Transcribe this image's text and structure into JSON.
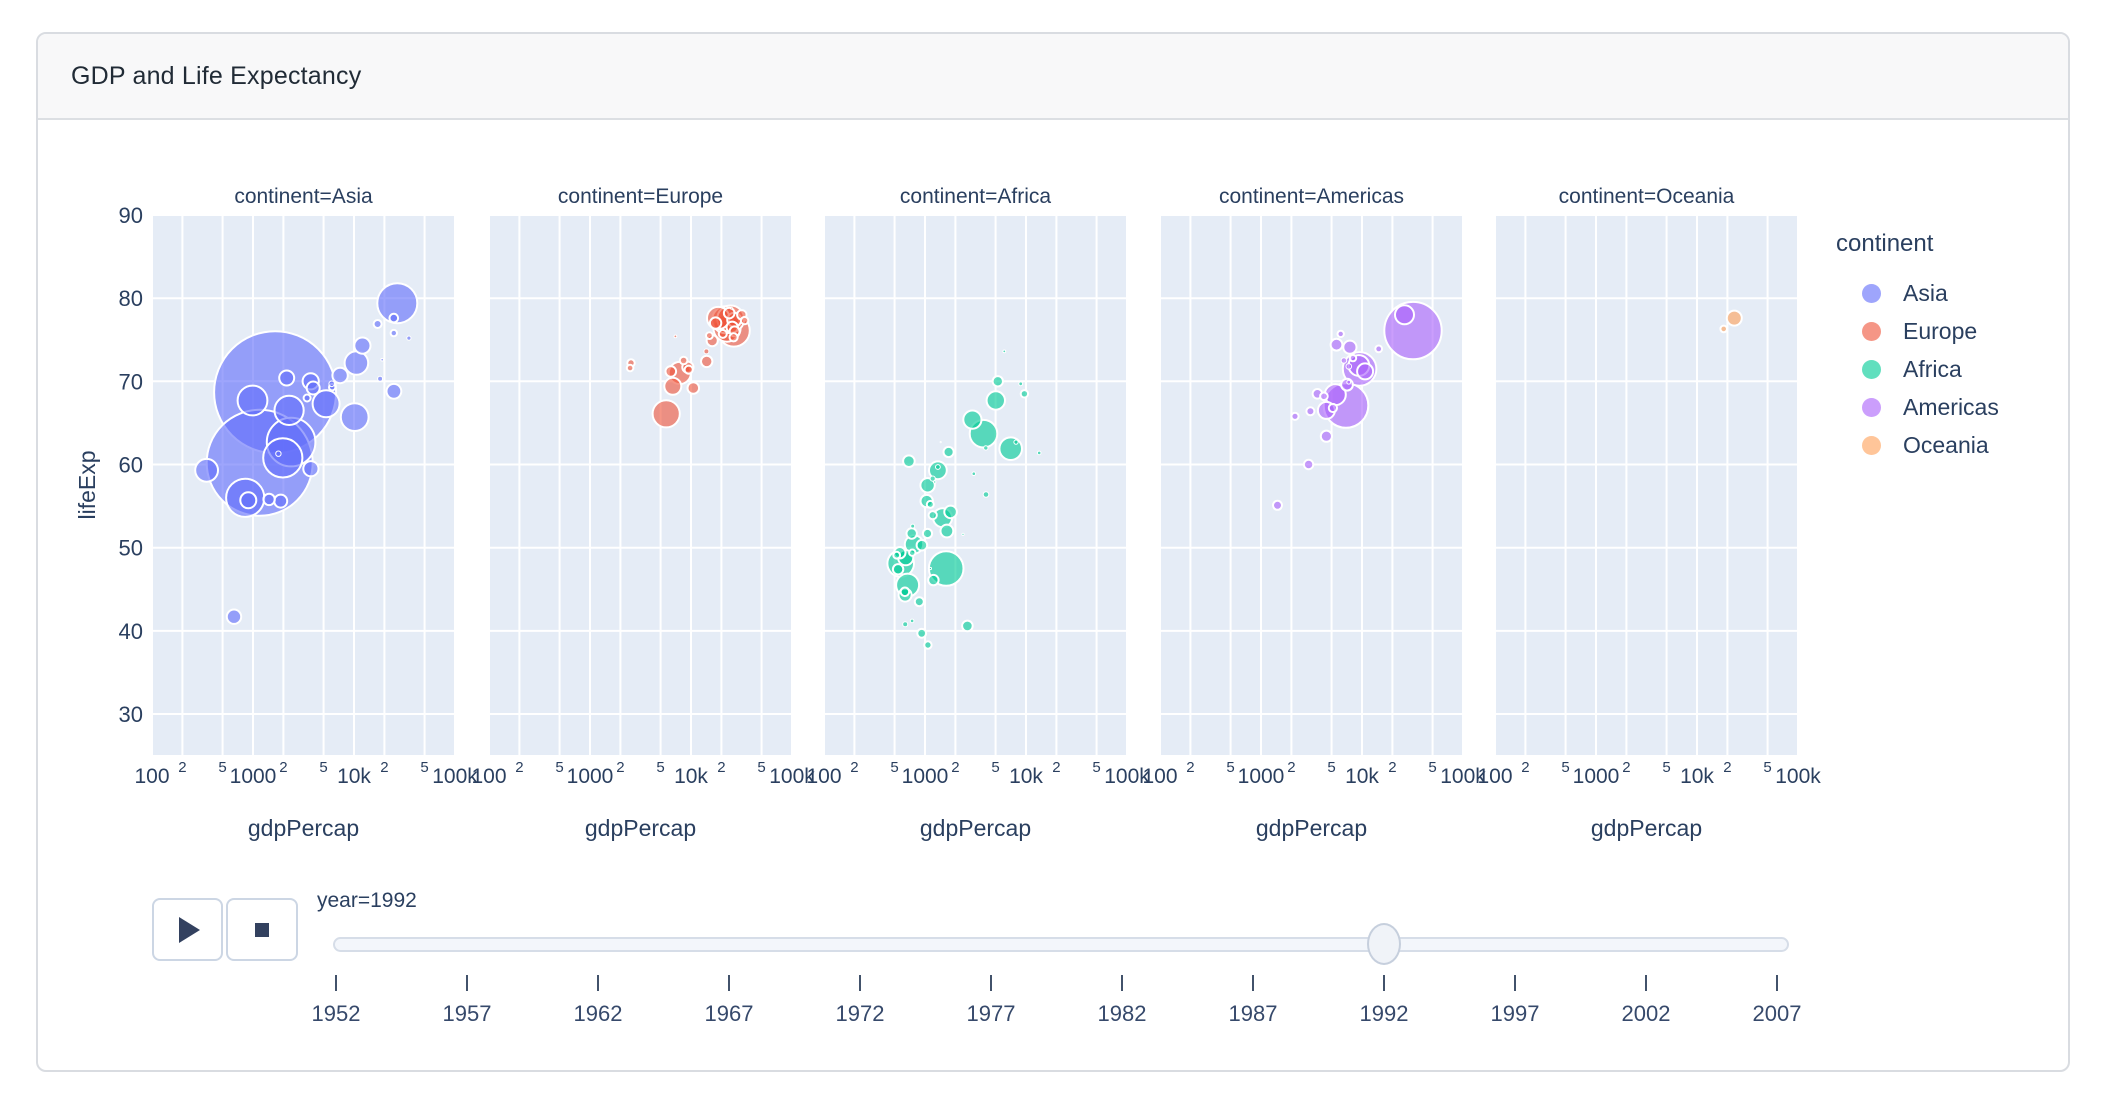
{
  "header": {
    "title": "GDP and Life Expectancy"
  },
  "controls": {
    "year_label": "year=1992",
    "play_icon": "play-triangle",
    "stop_icon": "stop-square"
  },
  "chart_data": {
    "type": "scatter",
    "subtype": "faceted-bubble",
    "title": "GDP and Life Expectancy",
    "xlabel": "gdpPercap",
    "ylabel": "lifeExp",
    "x_scale": "log",
    "x_range": [
      100,
      100000
    ],
    "y_grid_ticks": [
      30,
      40,
      50,
      60,
      70,
      80,
      90
    ],
    "grid": true,
    "legend_position": "right",
    "colors": {
      "plot_bg": "#e5ecf6",
      "grid": "#ffffff",
      "text": "#2a3f5f"
    },
    "x_ticks": [
      {
        "v": 100,
        "label": "100",
        "minor": false
      },
      {
        "v": 200,
        "label": "2",
        "minor": true
      },
      {
        "v": 500,
        "label": "5",
        "minor": true
      },
      {
        "v": 1000,
        "label": "1000",
        "minor": false
      },
      {
        "v": 2000,
        "label": "2",
        "minor": true
      },
      {
        "v": 5000,
        "label": "5",
        "minor": true
      },
      {
        "v": 10000,
        "label": "10k",
        "minor": false
      },
      {
        "v": 20000,
        "label": "2",
        "minor": true
      },
      {
        "v": 50000,
        "label": "5",
        "minor": true
      },
      {
        "v": 100000,
        "label": "100k",
        "minor": false
      }
    ],
    "point_format": [
      "gdpPercap",
      "lifeExp",
      "radius_px"
    ],
    "facets": [
      {
        "label": "continent=Asia",
        "continent": "Asia",
        "color": "#636efa",
        "points": [
          [
            1656,
            68.7,
            61
          ],
          [
            1164,
            60.2,
            53
          ],
          [
            2383,
            62.7,
            24.3
          ],
          [
            26825,
            79.4,
            20
          ],
          [
            1972,
            60.8,
            19.6
          ],
          [
            838,
            56,
            19.1
          ],
          [
            989,
            67.7,
            14.9
          ],
          [
            2279,
            66.5,
            14.6
          ],
          [
            10170,
            65.7,
            13.9
          ],
          [
            5289,
            67.3,
            13.5
          ],
          [
            10557,
            72.2,
            11.8
          ],
          [
            347,
            59.3,
            11.4
          ],
          [
            3726,
            70,
            8.1
          ],
          [
            12104,
            74.3,
            8.1
          ],
          [
            898,
            55.7,
            8
          ],
          [
            7278,
            70.7,
            7.7
          ],
          [
            3746,
            59.5,
            7.6
          ],
          [
            2154,
            70.4,
            7.5
          ],
          [
            24841,
            68.8,
            7.4
          ],
          [
            649,
            41.7,
            7.2
          ],
          [
            1879,
            55.6,
            6.5
          ],
          [
            3945,
            69.2,
            6.5
          ],
          [
            1445,
            55.8,
            5.7
          ],
          [
            24757,
            77.6,
            4.3
          ],
          [
            17122,
            76.9,
            4
          ],
          [
            3431,
            68,
            3.5
          ],
          [
            24770,
            75.8,
            3.2
          ],
          [
            6090,
            69.3,
            3.2
          ],
          [
            6017,
            69.7,
            2.8
          ],
          [
            1785,
            61.3,
            2.7
          ],
          [
            18115,
            70.3,
            2.5
          ],
          [
            34933,
            75.2,
            2.1
          ],
          [
            19036,
            72.6,
            1.3
          ]
        ]
      },
      {
        "label": "continent=Europe",
        "continent": "Europe",
        "color": "#ef553b",
        "points": [
          [
            26505,
            76.1,
            16
          ],
          [
            22705,
            76.4,
            13.6
          ],
          [
            5678,
            66.1,
            13.6
          ],
          [
            22014,
            77.4,
            13.5
          ],
          [
            24704,
            77.5,
            13.5
          ],
          [
            18603,
            77.6,
            11.2
          ],
          [
            7739,
            71,
            11.1
          ],
          [
            6598,
            69.4,
            8.5
          ],
          [
            26791,
            77.4,
            7
          ],
          [
            10536,
            69.2,
            5.8
          ],
          [
            14297,
            72.4,
            5.7
          ],
          [
            17541,
            77,
            5.7
          ],
          [
            25576,
            76.5,
            5.7
          ],
          [
            16207,
            74.9,
            5.6
          ],
          [
            9325,
            71.7,
            5.6
          ],
          [
            23880,
            78.2,
            5.3
          ],
          [
            6303,
            71.2,
            5.3
          ],
          [
            27042,
            76,
            5
          ],
          [
            31871,
            78,
            4.7
          ],
          [
            9498,
            71.4,
            4.1
          ],
          [
            26407,
            75.3,
            4.1
          ],
          [
            20647,
            75.7,
            4
          ],
          [
            8448,
            72.5,
            3.8
          ],
          [
            33965,
            77.3,
            3.7
          ],
          [
            2547,
            72.2,
            3.7
          ],
          [
            15216,
            75.5,
            3.4
          ],
          [
            2497,
            71.6,
            3.3
          ],
          [
            14215,
            73.6,
            2.5
          ],
          [
            7003,
            75.4,
            1.4
          ],
          [
            25144,
            78.8,
            0.9
          ]
        ]
      },
      {
        "label": "continent=Africa",
        "continent": "Africa",
        "color": "#00cc96",
        "points": [
          [
            1620,
            47.5,
            17.3
          ],
          [
            3795,
            63.7,
            13.8
          ],
          [
            575,
            48.1,
            13.3
          ],
          [
            672,
            45.5,
            11.5
          ],
          [
            7062,
            61.9,
            11.3
          ],
          [
            1492,
            53.6,
            9.5
          ],
          [
            779,
            50.4,
            9.2
          ],
          [
            5023,
            67.7,
            9.2
          ],
          [
            2948,
            65.4,
            9.1
          ],
          [
            1342,
            59.3,
            8.9
          ],
          [
            644,
            48.8,
            7.6
          ],
          [
            1061,
            57.5,
            7.2
          ],
          [
            635,
            44.3,
            6.5
          ],
          [
            1648,
            52,
            6.4
          ],
          [
            1793,
            54.3,
            6.3
          ],
          [
            1040,
            55.6,
            6.2
          ],
          [
            693,
            60.4,
            5.8
          ],
          [
            563,
            49.4,
            5.7
          ],
          [
            2628,
            40.6,
            5.3
          ],
          [
            932,
            50.3,
            5.3
          ],
          [
            739,
            51.7,
            5.2
          ],
          [
            542,
            47.4,
            5.2
          ],
          [
            1211,
            46.1,
            5.2
          ],
          [
            5258,
            70,
            5.2
          ],
          [
            1713,
            61.5,
            5.1
          ],
          [
            879,
            43.5,
            4.5
          ],
          [
            1058,
            51.7,
            4.6
          ],
          [
            927,
            39.7,
            4.4
          ],
          [
            632,
            44.7,
            4.3
          ],
          [
            1191,
            53.9,
            4.1
          ],
          [
            9640,
            68.5,
            3.7
          ],
          [
            1069,
            38.3,
            3.7
          ],
          [
            1128,
            55.2,
            3.5
          ],
          [
            525,
            49.1,
            3.4
          ],
          [
            748,
            49.4,
            3.2
          ],
          [
            4016,
            56.4,
            2.8
          ],
          [
            1191,
            58.3,
            2.6
          ],
          [
            637,
            40.8,
            2.5
          ],
          [
            1342,
            59.7,
            2.4
          ],
          [
            3999,
            62,
            2.2
          ],
          [
            7954,
            62.7,
            2.1
          ],
          [
            756,
            52.6,
            2
          ],
          [
            8852,
            69.7,
            1.9
          ],
          [
            3044,
            58.9,
            1.8
          ],
          [
            745,
            41.2,
            1.8
          ],
          [
            13522,
            61.4,
            1.8
          ],
          [
            6101,
            73.6,
            1.4
          ],
          [
            1247,
            57.9,
            1.2
          ],
          [
            2377,
            51.6,
            1.1
          ],
          [
            1132,
            47.5,
            1.1
          ],
          [
            1429,
            62.7,
            0.6
          ]
        ]
      },
      {
        "label": "continent=Americas",
        "continent": "Americas",
        "color": "#ab63fa",
        "points": [
          [
            32004,
            76.1,
            28.7
          ],
          [
            6950,
            67.1,
            22.3
          ],
          [
            9472,
            71.5,
            16.8
          ],
          [
            5445,
            68.4,
            10.5
          ],
          [
            9308,
            71.9,
            10.4
          ],
          [
            26343,
            78,
            9.5
          ],
          [
            4446,
            66.5,
            8.5
          ],
          [
            10734,
            71.2,
            8
          ],
          [
            7596,
            74.1,
            6.6
          ],
          [
            7104,
            69.6,
            5.9
          ],
          [
            5593,
            74.4,
            5.9
          ],
          [
            4439,
            63.4,
            5.6
          ],
          [
            3614,
            68.5,
            4.8
          ],
          [
            2962,
            60,
            4.7
          ],
          [
            1456,
            55.1,
            4.5
          ],
          [
            5155,
            66.8,
            4.1
          ],
          [
            3082,
            66.4,
            4
          ],
          [
            4196,
            68.2,
            3.8
          ],
          [
            2170,
            65.8,
            3.6
          ],
          [
            14642,
            73.9,
            3.4
          ],
          [
            6160,
            75.7,
            3.2
          ],
          [
            8137,
            72.8,
            3.2
          ],
          [
            6619,
            72.5,
            2.8
          ],
          [
            7405,
            71.8,
            2.8
          ],
          [
            7389,
            69.9,
            1.9
          ]
        ]
      },
      {
        "label": "continent=Oceania",
        "continent": "Oceania",
        "color": "#ffa15a",
        "points": [
          [
            23425,
            77.6,
            7.5
          ],
          [
            18363,
            76.3,
            3.3
          ]
        ]
      }
    ],
    "legend": {
      "title": "continent",
      "items": [
        {
          "label": "Asia",
          "color": "#636efa"
        },
        {
          "label": "Europe",
          "color": "#ef553b"
        },
        {
          "label": "Africa",
          "color": "#00cc96"
        },
        {
          "label": "Americas",
          "color": "#ab63fa"
        },
        {
          "label": "Oceania",
          "color": "#ffa15a"
        }
      ]
    },
    "slider": {
      "years": [
        1952,
        1957,
        1962,
        1967,
        1972,
        1977,
        1982,
        1987,
        1992,
        1997,
        2002,
        2007
      ],
      "value": 1992
    }
  }
}
